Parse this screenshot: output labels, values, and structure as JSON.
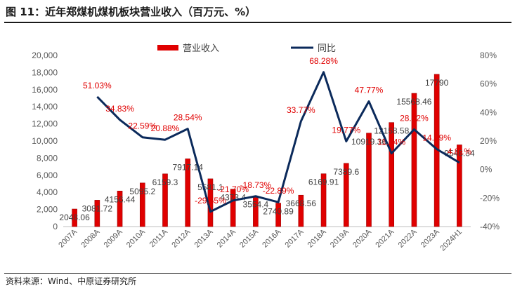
{
  "figure": {
    "title": "图 11：近年郑煤机煤机板块营业收入（百万元、%）",
    "source": "资料来源：Wind、中原证券研究所"
  },
  "chart_data": {
    "type": "bar+line",
    "categories": [
      "2007A",
      "2008A",
      "2009A",
      "2010A",
      "2011A",
      "2012A",
      "2013A",
      "2014A",
      "2015A",
      "2016A",
      "2017A",
      "2018A",
      "2019A",
      "2020A",
      "2021A",
      "2022A",
      "2023A",
      "2024H1"
    ],
    "series": [
      {
        "name": "营业收入",
        "type": "bar",
        "axis": "left",
        "color": "#e00000",
        "values": [
          2048.06,
          3081.72,
          4156.44,
          5095.2,
          6159.3,
          7917.14,
          5581.1,
          4373.4,
          3554.4,
          2740.89,
          3668.56,
          6169.91,
          7389.6,
          10919.36,
          12158.58,
          15568.46,
          17790,
          9548.34
        ],
        "labels": [
          "2048.06",
          "3081.72",
          "4156.44",
          "5095.2",
          "6159.3",
          "7917.14",
          "5581.1",
          "4373.4",
          "3554.4",
          "2740.89",
          "3668.56",
          "6169.91",
          "7389.6",
          "10919.36",
          "12158.58",
          "15568.46",
          "17790",
          "9548.34"
        ]
      },
      {
        "name": "同比",
        "type": "line",
        "axis": "right",
        "color": "#0b2a5b",
        "values": [
          null,
          51.03,
          34.83,
          22.59,
          20.88,
          28.54,
          -29.55,
          -21.7,
          -18.73,
          -22.89,
          33.77,
          68.28,
          19.77,
          47.77,
          11.34,
          28.12,
          14.29,
          4.81
        ],
        "labels": [
          "",
          "51.03%",
          "34.83%",
          "22.59%",
          "20.88%",
          "28.54%",
          "-29.55%",
          "-21.70%",
          "-18.73%",
          "-22.89%",
          "33.77%",
          "68.28%",
          "19.77%",
          "47.77%",
          "11.34%",
          "28.12%",
          "14.29%",
          "4.81%"
        ]
      }
    ],
    "y_left": {
      "min": 0,
      "max": 20000,
      "step": 2000,
      "ticks": [
        "0",
        "2,000",
        "4,000",
        "6,000",
        "8,000",
        "10,000",
        "12,000",
        "14,000",
        "16,000",
        "18,000",
        "20,000"
      ]
    },
    "y_right": {
      "min": -40,
      "max": 80,
      "step": 20,
      "ticks": [
        "-40%",
        "-20%",
        "0%",
        "20%",
        "40%",
        "60%",
        "80%"
      ]
    },
    "legend_position": "top-center",
    "grid": false
  }
}
